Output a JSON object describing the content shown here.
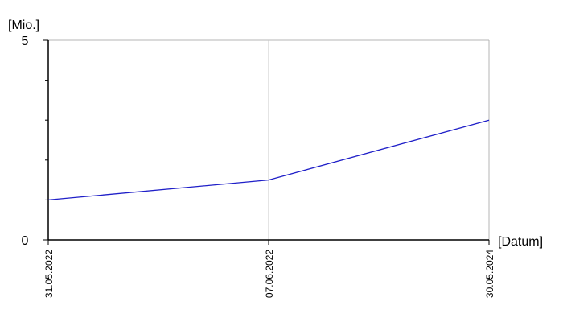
{
  "chart_data": {
    "type": "line",
    "y_label": "[Mio.]",
    "x_label": "[Datum]",
    "categories": [
      "31.05.2022",
      "07.06.2022",
      "30.05.2024"
    ],
    "values": [
      1.0,
      1.5,
      3.0
    ],
    "color": "#1f1fc8",
    "ylim": [
      0,
      5
    ],
    "yticks": [
      0,
      5
    ],
    "yminorticks": [
      1,
      2,
      3,
      4
    ],
    "grid": true
  }
}
